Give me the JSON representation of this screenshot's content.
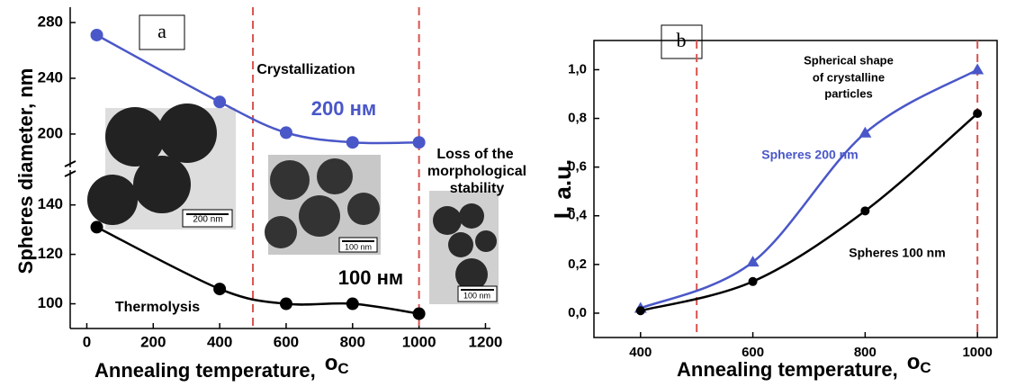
{
  "chart_data": [
    {
      "type": "line",
      "panel_label": "a",
      "x_label": "Annealing temperature,",
      "x_unit": {
        "degree": "o",
        "symbol": "C"
      },
      "y_label": "Spheres diameter, nm",
      "xlim": [
        -50,
        1215
      ],
      "xticks": [
        0,
        200,
        400,
        600,
        800,
        1000,
        1200
      ],
      "ylim": [
        90,
        291
      ],
      "ybreak": [
        153,
        178
      ],
      "yticks": [
        100,
        120,
        140,
        200,
        240,
        280
      ],
      "vlines": [
        500,
        1000
      ],
      "vline_color": "#d9534f",
      "series": [
        {
          "name": "200 нм",
          "color": "#4a57c8",
          "marker": "circle",
          "x": [
            30,
            400,
            600,
            800,
            1000
          ],
          "values": [
            271,
            223,
            201,
            194,
            194
          ]
        },
        {
          "name": "100 нм",
          "color": "#000000",
          "marker": "circle",
          "x": [
            30,
            400,
            600,
            800,
            1000
          ],
          "values": [
            131,
            106,
            100,
            100,
            96
          ]
        }
      ],
      "annotations": {
        "crystallization": "Crystallization",
        "thermolysis": "Thermolysis",
        "loss": [
          "Loss of the",
          "morphological",
          "stability"
        ]
      },
      "insets": [
        {
          "scale_bar": "200 nm"
        },
        {
          "scale_bar": "100 nm"
        },
        {
          "scale_bar": "100 nm"
        }
      ]
    },
    {
      "type": "line",
      "panel_label": "b",
      "x_label": "Annealing temperature,",
      "x_unit": {
        "degree": "o",
        "symbol": "C"
      },
      "y_label": "I, a.u.",
      "xlim": [
        317,
        1035
      ],
      "xticks": [
        400,
        600,
        800,
        1000
      ],
      "ylim": [
        -0.1,
        1.12
      ],
      "yticks": [
        {
          "value": 0,
          "label": "0,0"
        },
        {
          "value": 0.2,
          "label": "0,2"
        },
        {
          "value": 0.4,
          "label": "0,4"
        },
        {
          "value": 0.6,
          "label": "0,6"
        },
        {
          "value": 0.8,
          "label": "0,8"
        },
        {
          "value": 1.0,
          "label": "1,0"
        }
      ],
      "vlines": [
        500,
        1000
      ],
      "vline_color": "#d9534f",
      "series": [
        {
          "name": "Spheres 200 nm",
          "color": "#4a57c8",
          "marker": "triangle",
          "x": [
            400,
            600,
            800,
            1000
          ],
          "values": [
            0.02,
            0.21,
            0.74,
            1.0
          ]
        },
        {
          "name": "Spheres 100 nm",
          "color": "#000000",
          "marker": "circle",
          "x": [
            400,
            600,
            800,
            1000
          ],
          "values": [
            0.01,
            0.13,
            0.42,
            0.82
          ]
        }
      ],
      "annotation": [
        "Spherical shape",
        "of crystalline",
        "particles"
      ]
    }
  ]
}
